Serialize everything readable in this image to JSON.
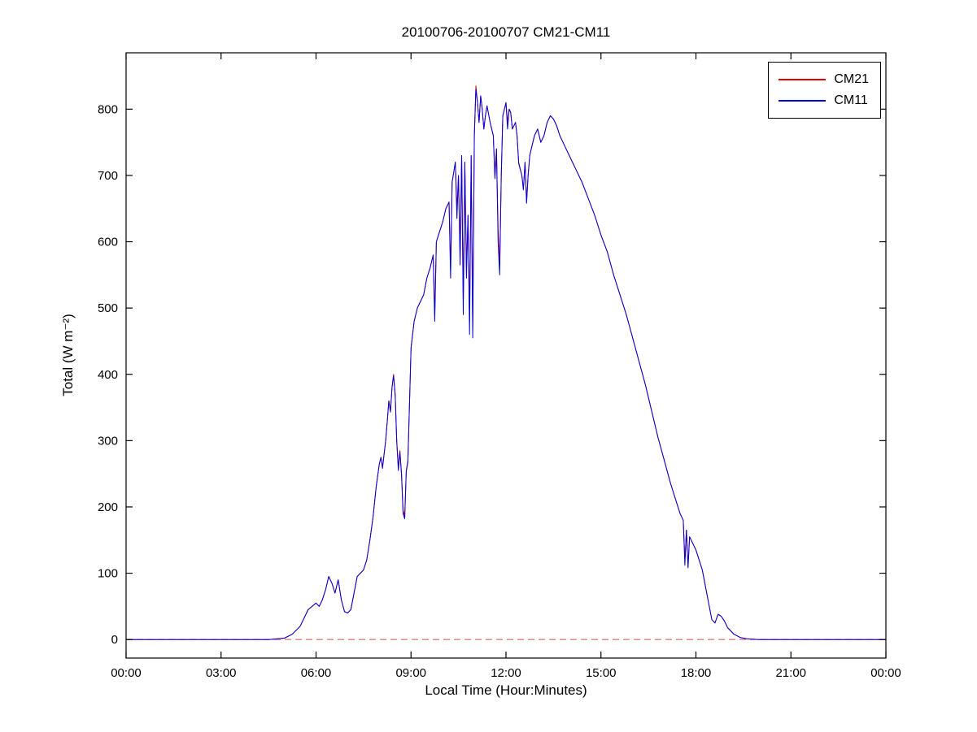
{
  "figure": {
    "title": "20100706-20100707 CM21-CM11",
    "xlabel": "Local Time (Hour:Minutes)",
    "ylabel": "Total (W m⁻²)"
  },
  "legend": {
    "entries": [
      {
        "label": "CM21",
        "color": "#e00000"
      },
      {
        "label": "CM11",
        "color": "#0000dd"
      }
    ]
  },
  "chart_data": {
    "type": "line",
    "title": "20100706-20100707 CM21-CM11",
    "xlabel": "Local Time (Hour:Minutes)",
    "ylabel": "Total (W m-2)",
    "xlim": [
      0,
      24
    ],
    "ylim": [
      -28,
      885
    ],
    "grid": false,
    "legend_position": "top-right",
    "xticks": [
      0,
      3,
      6,
      9,
      12,
      15,
      18,
      21,
      24
    ],
    "xtick_labels": [
      "00:00",
      "03:00",
      "06:00",
      "09:00",
      "12:00",
      "15:00",
      "18:00",
      "21:00",
      "00:00"
    ],
    "yticks": [
      0,
      100,
      200,
      300,
      400,
      500,
      600,
      700,
      800
    ],
    "ytick_labels": [
      "0",
      "100",
      "200",
      "300",
      "400",
      "500",
      "600",
      "700",
      "800"
    ],
    "baseline": {
      "y": 0,
      "style": "dashed",
      "color": "#d05050"
    },
    "x": [
      0,
      1,
      2,
      3,
      4,
      4.5,
      5,
      5.25,
      5.5,
      5.75,
      6,
      6.1,
      6.2,
      6.3,
      6.4,
      6.5,
      6.6,
      6.7,
      6.8,
      6.9,
      7,
      7.1,
      7.3,
      7.5,
      7.6,
      7.7,
      7.8,
      7.9,
      8,
      8.05,
      8.1,
      8.15,
      8.2,
      8.25,
      8.3,
      8.35,
      8.4,
      8.45,
      8.5,
      8.55,
      8.6,
      8.65,
      8.7,
      8.75,
      8.8,
      8.85,
      8.9,
      9,
      9.1,
      9.2,
      9.3,
      9.4,
      9.5,
      9.6,
      9.7,
      9.75,
      9.8,
      9.9,
      10,
      10.1,
      10.2,
      10.25,
      10.3,
      10.35,
      10.4,
      10.45,
      10.5,
      10.55,
      10.6,
      10.65,
      10.7,
      10.75,
      10.8,
      10.85,
      10.9,
      10.95,
      11,
      11.05,
      11.1,
      11.15,
      11.2,
      11.25,
      11.3,
      11.35,
      11.4,
      11.5,
      11.6,
      11.65,
      11.7,
      11.75,
      11.8,
      11.85,
      11.9,
      11.95,
      12,
      12.05,
      12.1,
      12.15,
      12.2,
      12.3,
      12.35,
      12.4,
      12.5,
      12.55,
      12.6,
      12.65,
      12.7,
      12.75,
      12.8,
      12.9,
      13,
      13.1,
      13.2,
      13.3,
      13.4,
      13.5,
      13.6,
      13.7,
      13.8,
      13.9,
      14,
      14.2,
      14.4,
      14.6,
      14.8,
      15,
      15.2,
      15.4,
      15.6,
      15.8,
      16,
      16.2,
      16.4,
      16.6,
      16.8,
      17,
      17.2,
      17.4,
      17.5,
      17.6,
      17.65,
      17.7,
      17.75,
      17.8,
      17.9,
      18,
      18.1,
      18.2,
      18.3,
      18.4,
      18.5,
      18.6,
      18.7,
      18.8,
      18.9,
      19,
      19.2,
      19.4,
      19.6,
      20,
      21,
      22,
      23,
      24
    ],
    "series": [
      {
        "name": "CM21",
        "color": "#e00000",
        "values": [
          0,
          0,
          0,
          0,
          0,
          0,
          2,
          8,
          20,
          45,
          55,
          50,
          60,
          75,
          95,
          85,
          70,
          90,
          60,
          42,
          40,
          45,
          95,
          105,
          120,
          150,
          185,
          230,
          265,
          275,
          260,
          280,
          300,
          330,
          360,
          345,
          380,
          400,
          370,
          300,
          260,
          285,
          250,
          195,
          185,
          255,
          270,
          440,
          480,
          500,
          510,
          520,
          545,
          560,
          580,
          490,
          600,
          615,
          630,
          650,
          660,
          560,
          690,
          705,
          720,
          650,
          700,
          580,
          730,
          510,
          720,
          560,
          640,
          480,
          730,
          470,
          760,
          835,
          810,
          780,
          820,
          800,
          770,
          790,
          805,
          780,
          760,
          700,
          740,
          620,
          560,
          700,
          790,
          800,
          810,
          780,
          800,
          795,
          770,
          780,
          760,
          720,
          700,
          680,
          720,
          660,
          700,
          730,
          740,
          760,
          770,
          750,
          760,
          780,
          790,
          785,
          775,
          760,
          750,
          740,
          730,
          710,
          690,
          665,
          640,
          610,
          585,
          550,
          520,
          490,
          455,
          420,
          385,
          345,
          305,
          270,
          235,
          205,
          190,
          180,
          120,
          165,
          110,
          155,
          145,
          135,
          120,
          105,
          80,
          55,
          30,
          25,
          38,
          35,
          28,
          18,
          8,
          3,
          1,
          0,
          0,
          0,
          0,
          0
        ]
      },
      {
        "name": "CM11",
        "color": "#0000dd",
        "values": [
          0,
          0,
          0,
          0,
          0,
          0,
          2,
          8,
          20,
          45,
          55,
          50,
          60,
          75,
          95,
          85,
          70,
          90,
          60,
          42,
          40,
          45,
          95,
          105,
          120,
          150,
          185,
          230,
          265,
          275,
          258,
          280,
          300,
          330,
          360,
          343,
          380,
          398,
          368,
          298,
          255,
          283,
          248,
          190,
          182,
          253,
          268,
          440,
          480,
          500,
          510,
          520,
          545,
          560,
          580,
          480,
          600,
          615,
          630,
          650,
          660,
          545,
          690,
          705,
          720,
          635,
          700,
          565,
          730,
          490,
          720,
          545,
          640,
          460,
          730,
          455,
          760,
          830,
          810,
          780,
          820,
          800,
          770,
          790,
          805,
          780,
          760,
          695,
          740,
          600,
          550,
          700,
          790,
          800,
          810,
          770,
          800,
          795,
          770,
          780,
          760,
          718,
          700,
          678,
          720,
          658,
          700,
          730,
          740,
          760,
          770,
          750,
          760,
          780,
          790,
          785,
          775,
          760,
          750,
          740,
          730,
          710,
          690,
          665,
          640,
          610,
          585,
          550,
          520,
          490,
          455,
          420,
          385,
          345,
          305,
          270,
          235,
          205,
          190,
          180,
          112,
          165,
          108,
          155,
          145,
          135,
          120,
          105,
          80,
          55,
          30,
          25,
          38,
          35,
          28,
          18,
          8,
          3,
          1,
          0,
          0,
          0,
          0,
          0
        ]
      }
    ]
  }
}
